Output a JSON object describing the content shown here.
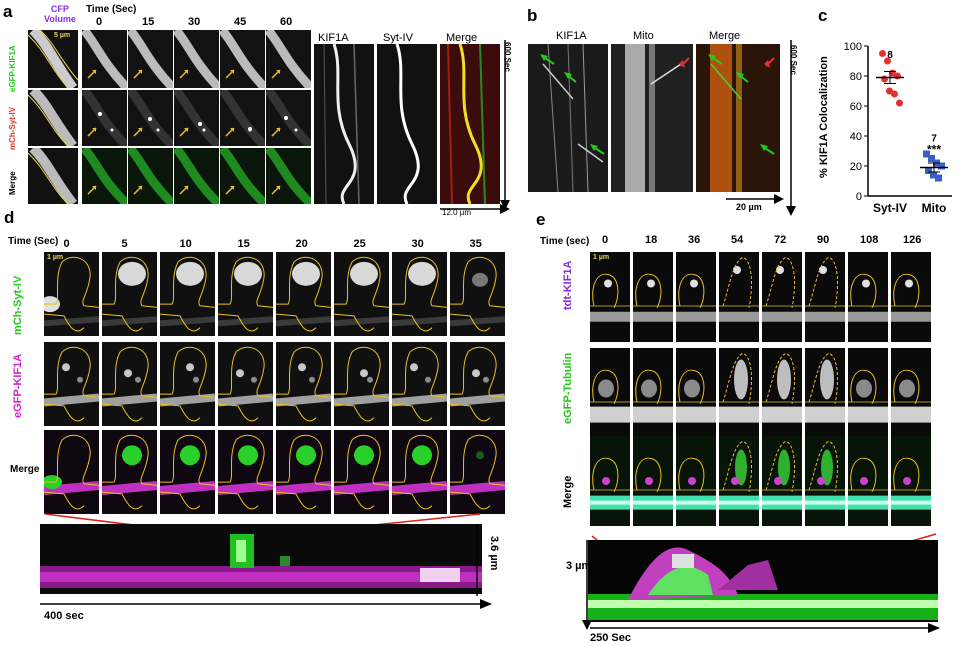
{
  "colors": {
    "green": "#27c81e",
    "magenta": "#d020d0",
    "red": "#e53030",
    "purple": "#8a2be2",
    "yellow": "#e8d84a",
    "red_line": "#e02010",
    "blue": "#3a5fc8"
  },
  "panel_a": {
    "letter": "a",
    "cfp_label": "CFP\nVolume",
    "cfp_line1": "CFP",
    "cfp_line2": "Volume",
    "scale": "5 µm",
    "time_label": "Time (Sec)",
    "times": [
      "0",
      "15",
      "30",
      "45",
      "60"
    ],
    "rows": [
      "eGFP-KIF1A",
      "mCh-Syt-IV",
      "Merge"
    ],
    "kymo_titles": [
      "KIF1A",
      "Syt-IV",
      "Merge"
    ],
    "kymo_time": "600 Sec",
    "kymo_scale": "12.0 µm"
  },
  "panel_b": {
    "letter": "b",
    "titles": [
      "KIF1A",
      "Mito",
      "Merge"
    ],
    "time": "600 Sec",
    "scale": "20 µm"
  },
  "panel_c": {
    "letter": "c",
    "ylabel": "% KIF1A Colocalization",
    "categories": [
      "Syt-IV",
      "Mito"
    ],
    "n_labels": [
      "8",
      "7"
    ],
    "significance": "***"
  },
  "chart_data": {
    "type": "scatter",
    "title": "",
    "xlabel": "",
    "ylabel": "% KIF1A Colocalization",
    "ylim": [
      0,
      100
    ],
    "yticks": [
      "0",
      "20",
      "40",
      "60",
      "80",
      "100"
    ],
    "categories": [
      "Syt-IV",
      "Mito"
    ],
    "series": [
      {
        "name": "Syt-IV",
        "color": "#e53030",
        "marker": "circle",
        "values": [
          95,
          90,
          82,
          80,
          78,
          70,
          68,
          62
        ],
        "mean": 79,
        "sem": 4
      },
      {
        "name": "Mito",
        "color": "#3a5fc8",
        "marker": "square",
        "values": [
          28,
          25,
          22,
          20,
          17,
          14,
          12
        ],
        "mean": 19,
        "sem": 3
      }
    ]
  },
  "panel_d": {
    "letter": "d",
    "time_label": "Time (Sec)",
    "times": [
      "0",
      "5",
      "10",
      "15",
      "20",
      "25",
      "30",
      "35"
    ],
    "scale": "1 µm",
    "rows": [
      "mCh-Syt-IV",
      "eGFP-KIF1A",
      "Merge"
    ],
    "kymo_height": "3.6 µm",
    "kymo_time": "400 sec"
  },
  "panel_e": {
    "letter": "e",
    "time_label": "Time (sec)",
    "times": [
      "0",
      "18",
      "36",
      "54",
      "72",
      "90",
      "108",
      "126"
    ],
    "scale": "1 µm",
    "rows": [
      "tdt-KIF1A",
      "eGFP-Tubulin",
      "Merge"
    ],
    "kymo_height": "3 µm",
    "kymo_time": "250 Sec"
  }
}
